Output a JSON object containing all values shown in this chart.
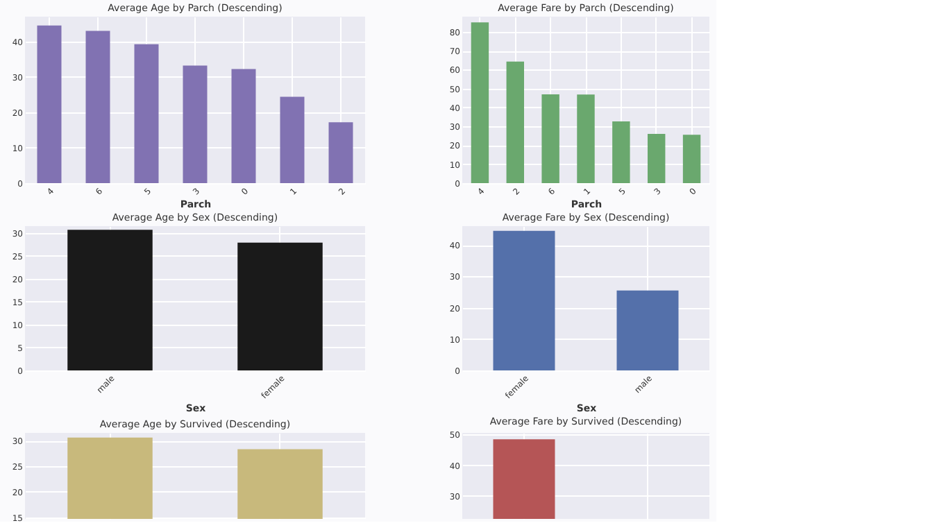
{
  "chart_data": [
    {
      "type": "bar",
      "title": "Average Age by Parch (Descending)",
      "xlabel": "Parch",
      "categories": [
        "4",
        "6",
        "5",
        "3",
        "0",
        "1",
        "2"
      ],
      "values": [
        44.5,
        43.0,
        39.2,
        33.2,
        32.2,
        24.4,
        17.2
      ],
      "color": "#8172b2",
      "ylim": [
        0,
        47
      ],
      "yticks": [
        0,
        10,
        20,
        30,
        40
      ],
      "grid": true
    },
    {
      "type": "bar",
      "title": "Average Fare by Parch (Descending)",
      "xlabel": "Parch",
      "categories": [
        "4",
        "2",
        "6",
        "1",
        "5",
        "3",
        "0"
      ],
      "values": [
        85.0,
        64.3,
        46.9,
        46.8,
        32.6,
        26.0,
        25.6
      ],
      "color": "#6aa86e",
      "ylim": [
        0,
        88
      ],
      "yticks": [
        0,
        10,
        20,
        30,
        40,
        50,
        60,
        70,
        80
      ],
      "grid": true
    },
    {
      "type": "bar",
      "title": "Average Age by Sex (Descending)",
      "xlabel": "Sex",
      "categories": [
        "male",
        "female"
      ],
      "values": [
        30.7,
        27.9
      ],
      "color": "#1a1a1a",
      "ylim": [
        0,
        31.5
      ],
      "yticks": [
        0,
        5,
        10,
        15,
        20,
        25,
        30
      ],
      "grid": true
    },
    {
      "type": "bar",
      "title": "Average Fare by Sex (Descending)",
      "xlabel": "Sex",
      "categories": [
        "female",
        "male"
      ],
      "values": [
        44.5,
        25.5
      ],
      "color": "#5470aa",
      "ylim": [
        0,
        46
      ],
      "yticks": [
        0,
        10,
        20,
        30,
        40
      ],
      "grid": true
    },
    {
      "type": "bar",
      "title": "Average Age by Survived (Descending)",
      "categories": [
        null,
        null
      ],
      "values": [
        30.6,
        28.3
      ],
      "color": "#c8b97c",
      "ylim": [
        14.7,
        31.5
      ],
      "yticks": [
        15,
        20,
        25,
        30
      ],
      "grid": true,
      "tick_labels": "y"
    },
    {
      "type": "bar",
      "title": "Average Fare by Survived (Descending)",
      "categories": [
        null,
        null
      ],
      "values": [
        48.4,
        null
      ],
      "color": "#b55556",
      "ylim": [
        22.5,
        50.5
      ],
      "yticks": [
        30,
        40,
        50
      ],
      "grid": true,
      "tick_labels": "y"
    }
  ]
}
